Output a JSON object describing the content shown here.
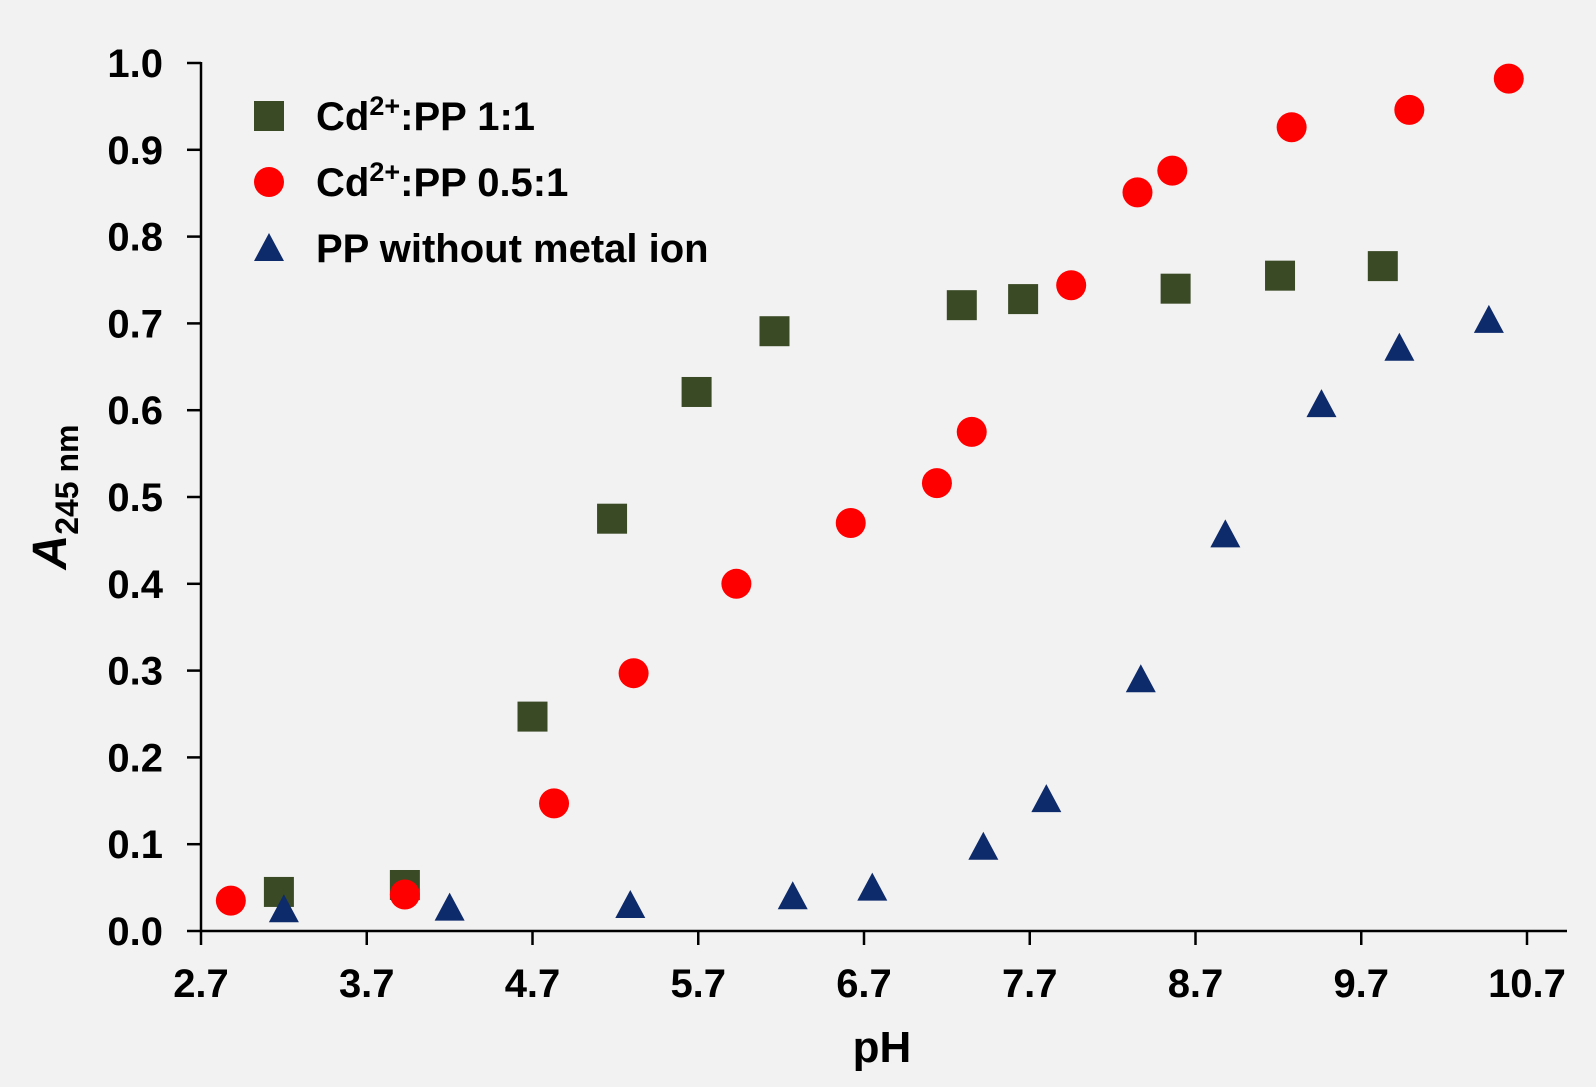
{
  "chart_data": {
    "type": "scatter",
    "xlabel": "pH",
    "ylabel": {
      "main": "A",
      "subscript": "245 nm"
    },
    "xlim": [
      2.7,
      10.7
    ],
    "ylim": [
      0.0,
      1.0
    ],
    "x_ticks": [
      "2.7",
      "3.7",
      "4.7",
      "5.7",
      "6.7",
      "7.7",
      "8.7",
      "9.7",
      "10.7"
    ],
    "y_ticks": [
      "0.0",
      "0.1",
      "0.2",
      "0.3",
      "0.4",
      "0.5",
      "0.6",
      "0.7",
      "0.8",
      "0.9",
      "1.0"
    ],
    "grid": false,
    "legend_position": "top-left",
    "series": [
      {
        "name": {
          "prefix": "Cd",
          "superscript": "2+",
          "suffix": ":PP 1:1"
        },
        "marker": "square",
        "color": "#3a4a25",
        "points": [
          [
            3.17,
            0.045
          ],
          [
            3.93,
            0.053
          ],
          [
            4.7,
            0.247
          ],
          [
            5.18,
            0.475
          ],
          [
            5.69,
            0.621
          ],
          [
            6.16,
            0.691
          ],
          [
            7.29,
            0.721
          ],
          [
            7.66,
            0.728
          ],
          [
            8.58,
            0.74
          ],
          [
            9.21,
            0.755
          ],
          [
            9.83,
            0.766
          ]
        ]
      },
      {
        "name": {
          "prefix": "Cd",
          "superscript": "2+",
          "suffix": ":PP 0.5:1"
        },
        "marker": "circle",
        "color": "#ff0000",
        "points": [
          [
            2.88,
            0.035
          ],
          [
            3.93,
            0.042
          ],
          [
            4.83,
            0.147
          ],
          [
            5.31,
            0.297
          ],
          [
            5.93,
            0.4
          ],
          [
            6.62,
            0.47
          ],
          [
            7.14,
            0.516
          ],
          [
            7.35,
            0.575
          ],
          [
            7.95,
            0.744
          ],
          [
            8.35,
            0.851
          ],
          [
            8.56,
            0.876
          ],
          [
            9.28,
            0.926
          ],
          [
            9.99,
            0.946
          ],
          [
            10.59,
            0.982
          ]
        ]
      },
      {
        "name": {
          "prefix": "PP without metal ion",
          "superscript": "",
          "suffix": ""
        },
        "marker": "triangle",
        "color": "#0d2a6b",
        "points": [
          [
            3.2,
            0.025
          ],
          [
            4.2,
            0.027
          ],
          [
            5.29,
            0.03
          ],
          [
            6.27,
            0.04
          ],
          [
            6.75,
            0.05
          ],
          [
            7.42,
            0.097
          ],
          [
            7.8,
            0.152
          ],
          [
            8.37,
            0.29
          ],
          [
            8.88,
            0.457
          ],
          [
            9.46,
            0.607
          ],
          [
            9.93,
            0.672
          ],
          [
            10.47,
            0.704
          ]
        ]
      }
    ]
  }
}
